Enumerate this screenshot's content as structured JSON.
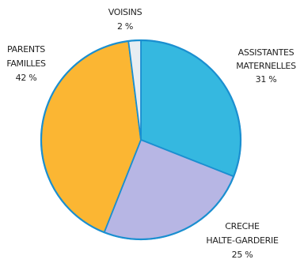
{
  "chart_data": {
    "type": "pie",
    "title": "",
    "slices": [
      {
        "label_lines": [
          "ASSISTANTES",
          "MATERNELLES"
        ],
        "value_label": "31 %",
        "value": 31,
        "color": "#35b8e0"
      },
      {
        "label_lines": [
          "CRECHE",
          "HALTE-GARDERIE"
        ],
        "value_label": "25 %",
        "value": 25,
        "color": "#b7b6e4"
      },
      {
        "label_lines": [
          "PARENTS",
          "FAMILLES"
        ],
        "value_label": "42 %",
        "value": 42,
        "color": "#fbb633"
      },
      {
        "label_lines": [
          "VOISINS"
        ],
        "value_label": "2 %",
        "value": 2,
        "color": "#e8edf2"
      }
    ],
    "start": "12 o'clock",
    "direction": "clockwise",
    "legend": "none",
    "outline_color": "#1b8fd0"
  }
}
